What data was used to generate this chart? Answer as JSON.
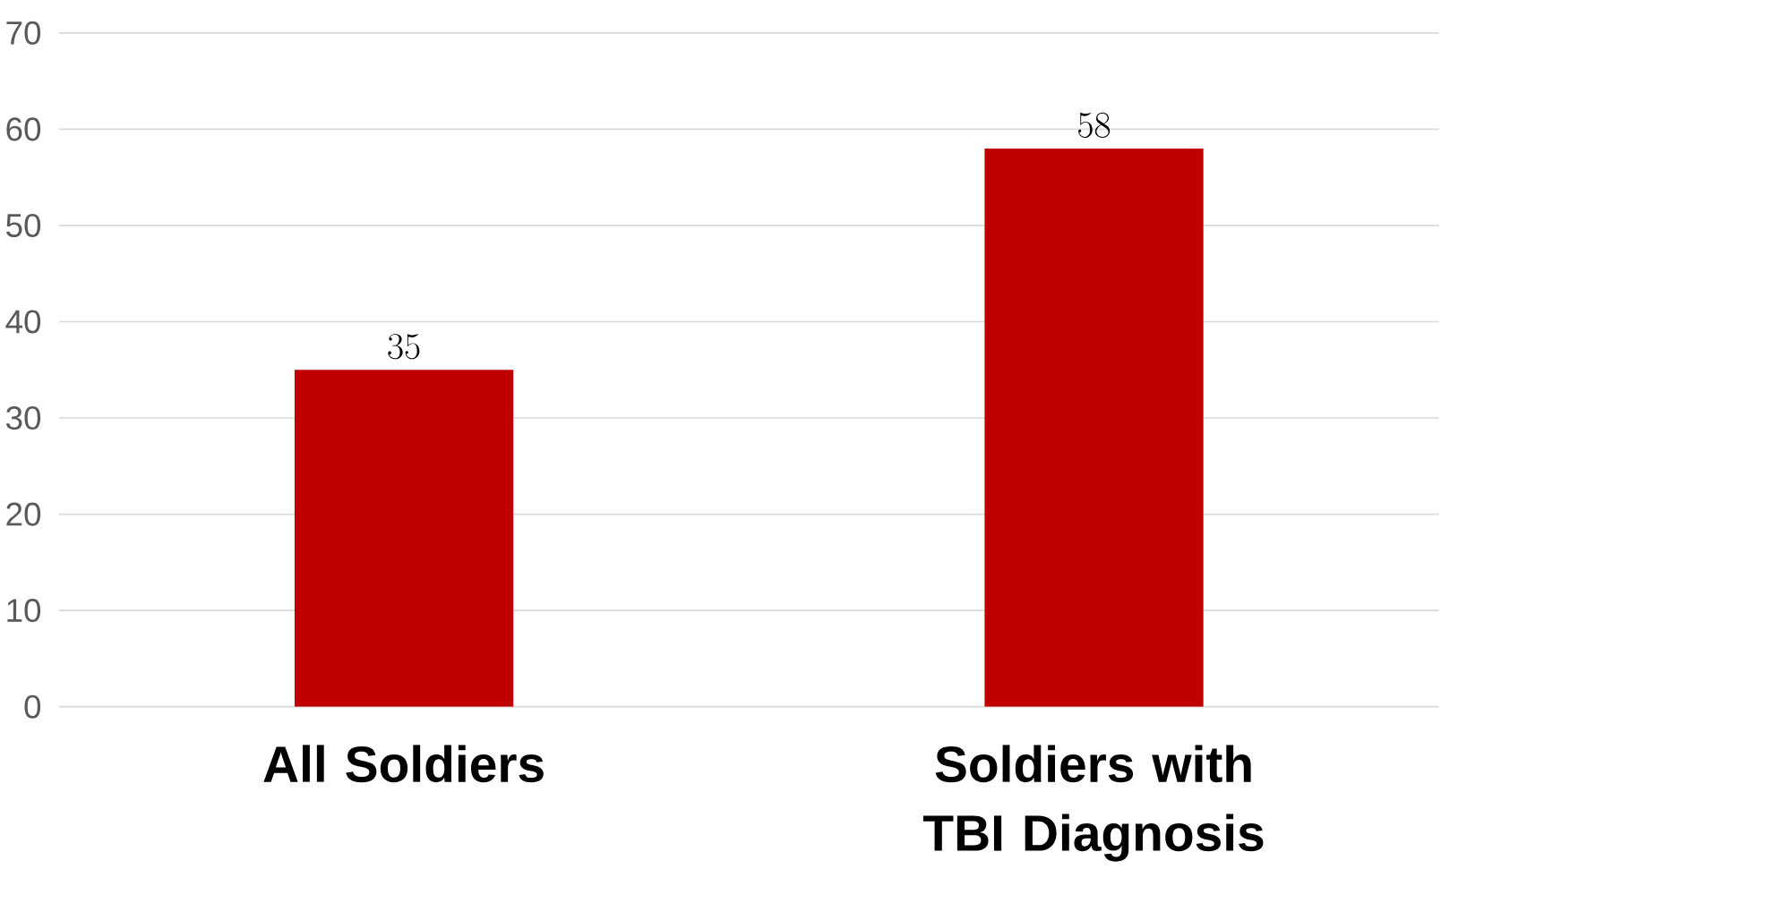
{
  "chart_data": {
    "type": "bar",
    "categories": [
      "All Soldiers",
      "Soldiers with TBI Diagnosis"
    ],
    "values": [
      35,
      58
    ],
    "color": "#c00000",
    "ylim": [
      0,
      70
    ],
    "yticks": [
      0,
      10,
      20,
      30,
      40,
      50,
      60,
      70
    ],
    "grid": "y",
    "data_labels": true
  }
}
